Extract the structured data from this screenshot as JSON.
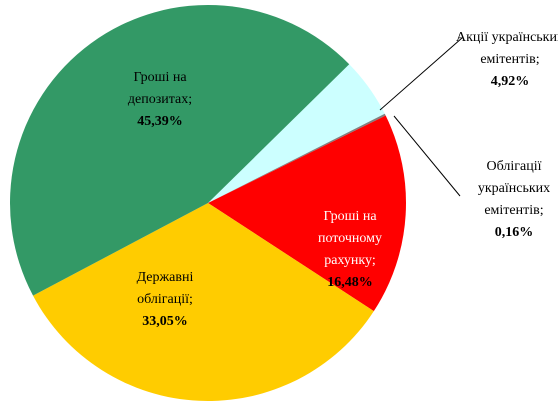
{
  "chart_data": {
    "type": "pie",
    "categories": [
      "Акції українських емітентів;",
      "Облігації українських емітентів;",
      "Гроші на поточному рахунку;",
      "Державні облігації;",
      "Гроші на депозитах;"
    ],
    "values": [
      4.92,
      0.16,
      16.48,
      33.05,
      45.39
    ],
    "value_labels": [
      "4,92%",
      "0,16%",
      "16,48%",
      "33,05%",
      "45,39%"
    ],
    "colors": [
      "#ccffff",
      "#808080",
      "#ff0000",
      "#ffcc00",
      "#339966"
    ]
  }
}
